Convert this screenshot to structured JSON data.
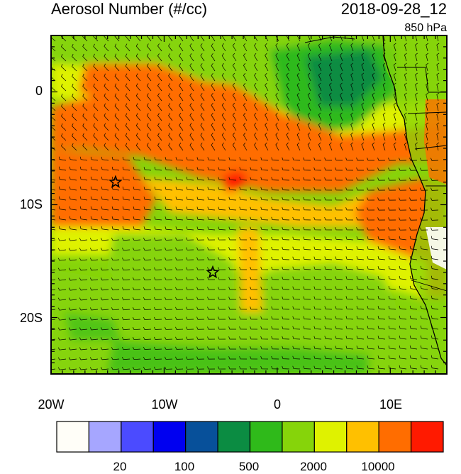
{
  "header": {
    "title": "Aerosol Number (#/cc)",
    "datetime": "2018-09-28_12",
    "level": "850 hPa"
  },
  "axes": {
    "y_labels": [
      "0",
      "10S",
      "20S"
    ],
    "x_labels": [
      "20W",
      "10W",
      "0",
      "10E"
    ]
  },
  "colorbar": {
    "colors": [
      "#fffef8",
      "#a6a6ff",
      "#4b4bff",
      "#0000f0",
      "#07509a",
      "#0b8c42",
      "#2fba1a",
      "#86d40a",
      "#dff200",
      "#ffc000",
      "#ff6d00",
      "#ff1a00"
    ],
    "labels": [
      "20",
      "100",
      "500",
      "2000",
      "10000"
    ]
  },
  "markers": [
    {
      "name": "star-1",
      "lon": -14.3,
      "lat": -8.0
    },
    {
      "name": "star-2",
      "lon": -5.7,
      "lat": -16.0
    }
  ]
}
